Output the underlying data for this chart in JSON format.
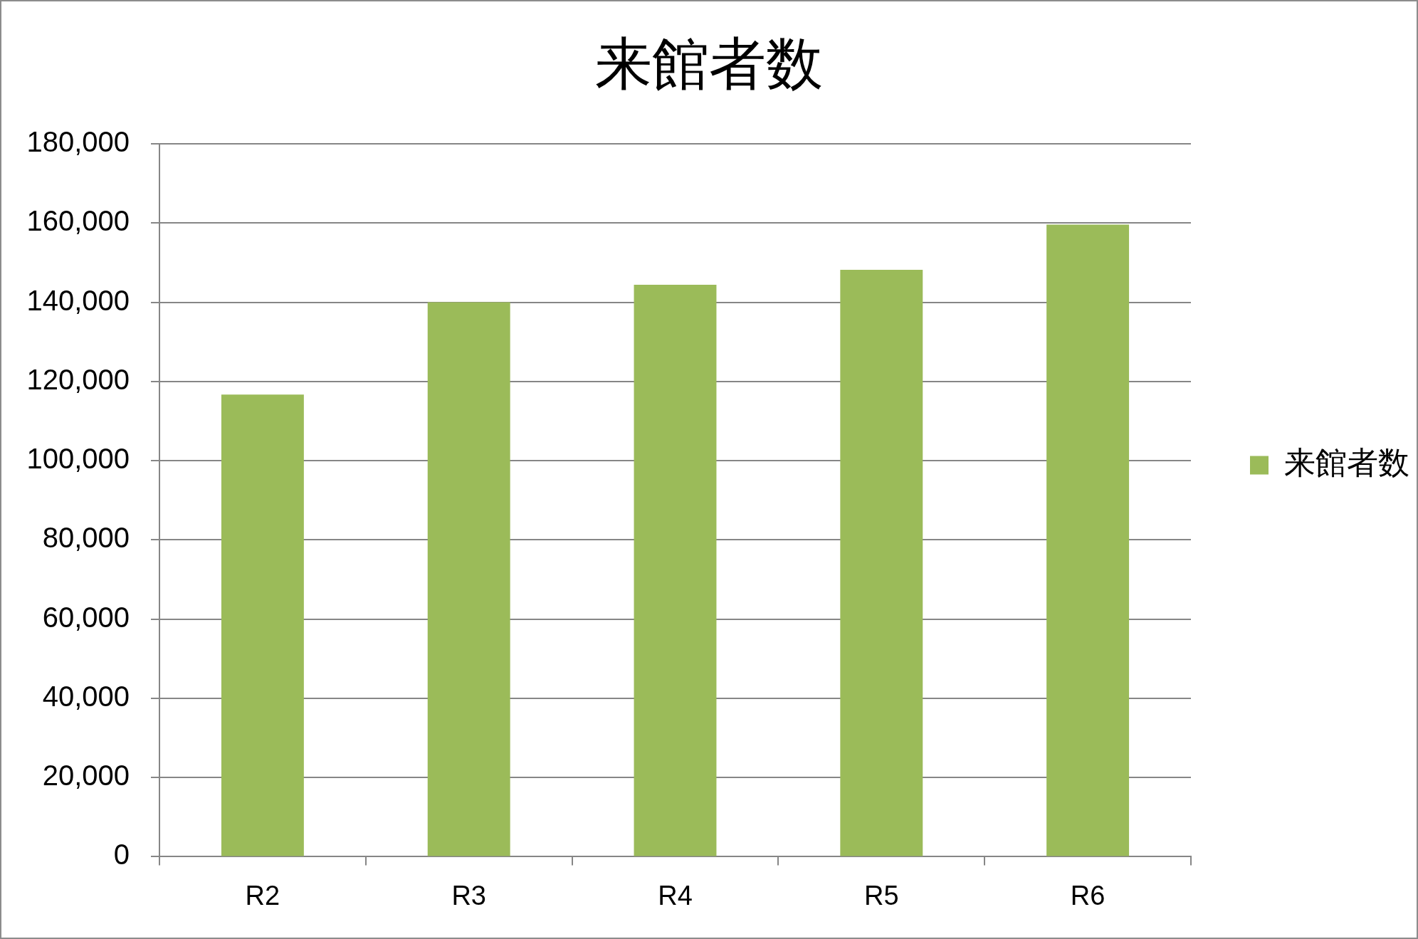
{
  "chart_data": {
    "type": "bar",
    "title": "来館者数",
    "categories": [
      "R2",
      "R3",
      "R4",
      "R5",
      "R6"
    ],
    "series": [
      {
        "name": "来館者数",
        "color": "#9bbb59",
        "values": [
          116700,
          140000,
          144400,
          148200,
          159600
        ]
      }
    ],
    "ylim": [
      0,
      180000
    ],
    "yticks": [
      0,
      {
        "value": 20000,
        "label": "20,000"
      },
      {
        "value": 40000,
        "label": "40,000"
      },
      {
        "value": 60000,
        "label": "60,000"
      },
      {
        "value": 80000,
        "label": "80,000"
      },
      {
        "value": 100000,
        "label": "100,000"
      },
      {
        "value": 120000,
        "label": "120,000"
      },
      {
        "value": 140000,
        "label": "140,000"
      },
      {
        "value": 160000,
        "label": "160,000"
      },
      {
        "value": 180000,
        "label": "180,000"
      }
    ],
    "grid": "y",
    "legend": "right"
  }
}
